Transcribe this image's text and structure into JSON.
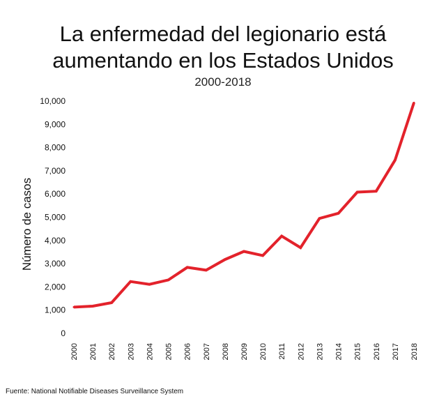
{
  "title_lines": [
    "La enfermedad del legionario está",
    "aumentando en los Estados Unidos"
  ],
  "subtitle": "2000-2018",
  "source": "Fuente: National Notifiable Diseases Surveillance System",
  "chart_data": {
    "type": "line",
    "title": "La enfermedad del legionario está aumentando en los Estados Unidos",
    "subtitle": "2000-2018",
    "xlabel": "",
    "ylabel": "Número de casos",
    "x": [
      "2000",
      "2001",
      "2002",
      "2003",
      "2004",
      "2005",
      "2006",
      "2007",
      "2008",
      "2009",
      "2010",
      "2011",
      "2012",
      "2013",
      "2014",
      "2015",
      "2016",
      "2017",
      "2018"
    ],
    "series": [
      {
        "values": [
          1130,
          1170,
          1320,
          2230,
          2110,
          2300,
          2840,
          2720,
          3180,
          3530,
          3350,
          4190,
          3690,
          4950,
          5170,
          6080,
          6120,
          7460,
          9930
        ],
        "color": "#e3222b"
      }
    ],
    "ylim": [
      0,
      10000
    ],
    "yticks": [
      0,
      1000,
      2000,
      3000,
      4000,
      5000,
      6000,
      7000,
      8000,
      9000,
      10000
    ],
    "ytick_labels": [
      "0",
      "1,000",
      "2,000",
      "3,000",
      "4,000",
      "5,000",
      "6,000",
      "7,000",
      "8,000",
      "9,000",
      "10,000"
    ],
    "grid": false
  }
}
